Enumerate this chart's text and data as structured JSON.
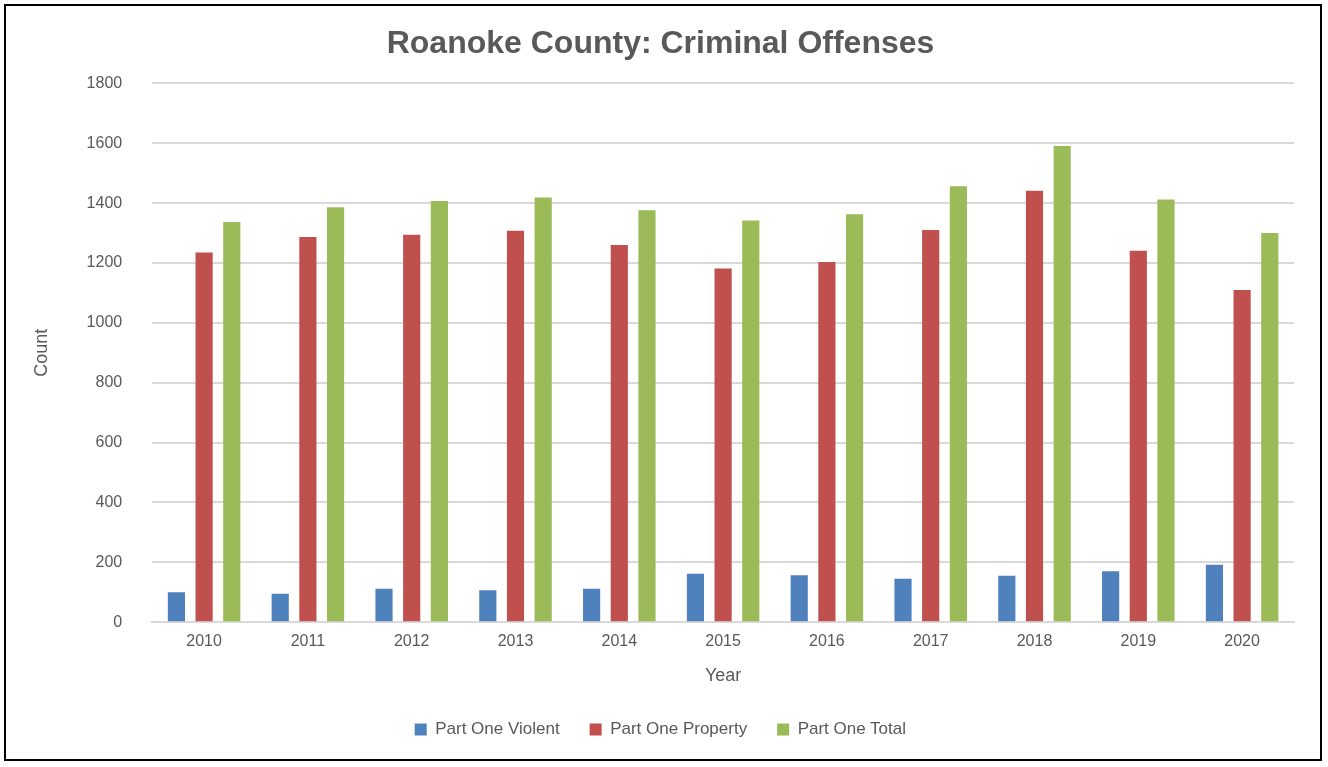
{
  "chart_data": {
    "type": "bar",
    "title": "Roanoke County: Criminal Offenses",
    "xlabel": "Year",
    "ylabel": "Count",
    "categories": [
      "2010",
      "2011",
      "2012",
      "2013",
      "2014",
      "2015",
      "2016",
      "2017",
      "2018",
      "2019",
      "2020"
    ],
    "series": [
      {
        "name": "Part One Violent",
        "color": "#4f81bd",
        "values": [
          100,
          95,
          112,
          107,
          112,
          162,
          157,
          145,
          155,
          170,
          192
        ]
      },
      {
        "name": "Part One Property",
        "color": "#c0504d",
        "values": [
          1235,
          1287,
          1294,
          1308,
          1260,
          1182,
          1203,
          1310,
          1441,
          1241,
          1110
        ]
      },
      {
        "name": "Part One Total",
        "color": "#9bbb59",
        "values": [
          1337,
          1386,
          1407,
          1419,
          1376,
          1342,
          1363,
          1456,
          1591,
          1412,
          1300
        ]
      }
    ],
    "ylim": [
      0,
      1800
    ],
    "yticks": [
      0,
      200,
      400,
      600,
      800,
      1000,
      1200,
      1400,
      1600,
      1800
    ],
    "grid": "y",
    "legend": "bottom"
  }
}
